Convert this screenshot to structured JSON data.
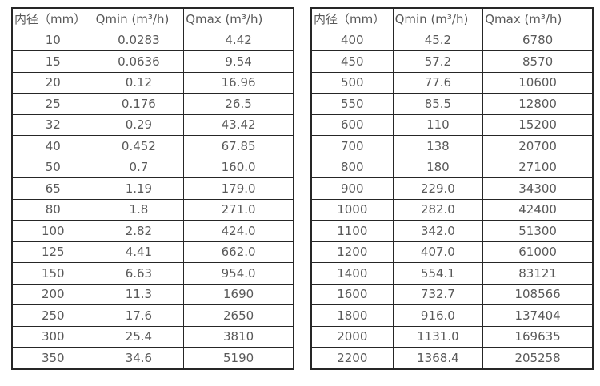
{
  "colors": {
    "background": "#ffffff",
    "border": "#262626",
    "text": "#595959"
  },
  "tables": [
    {
      "name": "flow-range-table-small-diameters",
      "headers": [
        "内径（mm）",
        "Qmin (m³/h)",
        "Qmax (m³/h)"
      ],
      "rows": [
        [
          "10",
          "0.0283",
          "4.42"
        ],
        [
          "15",
          "0.0636",
          "9.54"
        ],
        [
          "20",
          "0.12",
          "16.96"
        ],
        [
          "25",
          "0.176",
          "26.5"
        ],
        [
          "32",
          "0.29",
          "43.42"
        ],
        [
          "40",
          "0.452",
          "67.85"
        ],
        [
          "50",
          "0.7",
          "160.0"
        ],
        [
          "65",
          "1.19",
          "179.0"
        ],
        [
          "80",
          "1.8",
          "271.0"
        ],
        [
          "100",
          "2.82",
          "424.0"
        ],
        [
          "125",
          "4.41",
          "662.0"
        ],
        [
          "150",
          "6.63",
          "954.0"
        ],
        [
          "200",
          "11.3",
          "1690"
        ],
        [
          "250",
          "17.6",
          "2650"
        ],
        [
          "300",
          "25.4",
          "3810"
        ],
        [
          "350",
          "34.6",
          "5190"
        ]
      ]
    },
    {
      "name": "flow-range-table-large-diameters",
      "headers": [
        "内径（mm）",
        "Qmin (m³/h)",
        "Qmax (m³/h)"
      ],
      "rows": [
        [
          "400",
          "45.2",
          "6780"
        ],
        [
          "450",
          "57.2",
          "8570"
        ],
        [
          "500",
          "77.6",
          "10600"
        ],
        [
          "550",
          "85.5",
          "12800"
        ],
        [
          "600",
          "110",
          "15200"
        ],
        [
          "700",
          "138",
          "20700"
        ],
        [
          "800",
          "180",
          "27100"
        ],
        [
          "900",
          "229.0",
          "34300"
        ],
        [
          "1000",
          "282.0",
          "42400"
        ],
        [
          "1100",
          "342.0",
          "51300"
        ],
        [
          "1200",
          "407.0",
          "61000"
        ],
        [
          "1400",
          "554.1",
          "83121"
        ],
        [
          "1600",
          "732.7",
          "108566"
        ],
        [
          "1800",
          "916.0",
          "137404"
        ],
        [
          "2000",
          "1131.0",
          "169635"
        ],
        [
          "2200",
          "1368.4",
          "205258"
        ]
      ]
    }
  ]
}
